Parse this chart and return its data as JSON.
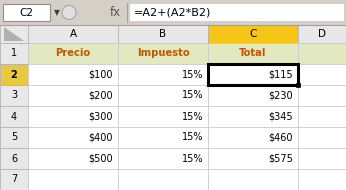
{
  "formula_bar_cell": "C2",
  "formula_bar_formula": "=A2+(A2*B2)",
  "col_headers": [
    "A",
    "B",
    "C",
    "D"
  ],
  "row_headers": [
    "1",
    "2",
    "3",
    "4",
    "5",
    "6",
    "7"
  ],
  "header_row": [
    "Precio",
    "Impuesto",
    "Total",
    ""
  ],
  "col_a": [
    "$100",
    "$200",
    "$300",
    "$400",
    "$500",
    ""
  ],
  "col_b": [
    "15%",
    "15%",
    "15%",
    "15%",
    "15%",
    ""
  ],
  "col_c": [
    "$115",
    "$230",
    "$345",
    "$460",
    "$575",
    ""
  ],
  "header_bg": "#e2e8c0",
  "col_c_header_bg": "#f5c518",
  "grid_color": "#c0c0c0",
  "text_color_header": "#c05800",
  "formula_bar_bg": "#f0f0f0",
  "row_num_selected_bg": "#e8c840",
  "col_c_selected_bg": "#f5c518",
  "selected_row_num_bg": "#e8c840"
}
